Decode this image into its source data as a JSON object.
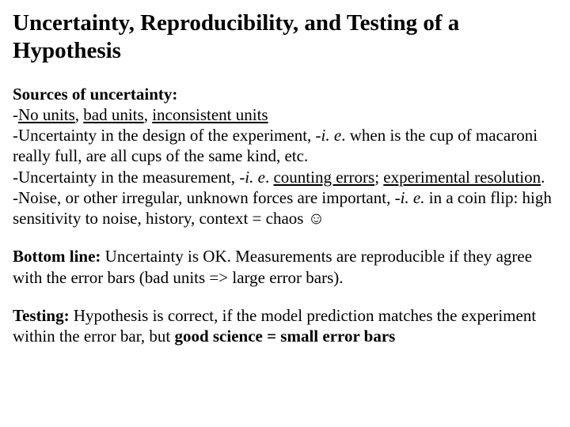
{
  "title": "Uncertainty, Reproducibility, and Testing of a Hypothesis",
  "sources": {
    "heading": "Sources of uncertainty:",
    "b1_dash": "-",
    "b1_no_units": "No units",
    "b1_sep1": ", ",
    "b1_bad_units": "bad units",
    "b1_sep2": ", ",
    "b1_inconsistent": "inconsistent units",
    "b2_pre": "-Uncertainty in the design of the experiment, ",
    "b2_ie": "-i. e",
    "b2_post": ". when is the cup of macaroni really full, are all cups of the same kind, etc.",
    "b3_pre": "-Uncertainty in the measurement, ",
    "b3_ie": "-i. e",
    "b3_mid": ". ",
    "b3_counting": "counting errors",
    "b3_sep": "; ",
    "b3_exp_res": "experimental resolution",
    "b3_end": ".",
    "b4_pre": "-Noise, or other irregular,  unknown forces are important, ",
    "b4_ie": "-i. e.",
    "b4_post": " in a coin flip: high sensitivity to noise, history, context = chaos ☺"
  },
  "bottom": {
    "label": "Bottom line:",
    "text": " Uncertainty is OK. Measurements  are reproducible if they agree with the error bars (bad units => large error bars)."
  },
  "testing": {
    "label": "Testing:",
    "text_pre": " Hypothesis is correct, if the model prediction matches the experiment within the error bar, but ",
    "text_bold": "good science = small error bars"
  }
}
